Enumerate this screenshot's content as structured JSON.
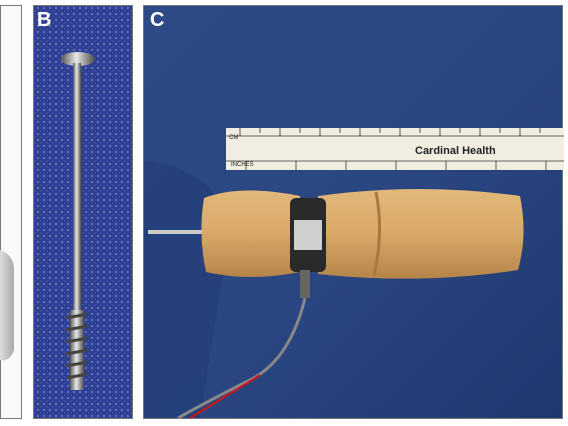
{
  "panels": [
    {
      "label": "B"
    },
    {
      "label": "C",
      "ruler": {
        "brand": "Cardinal Health",
        "top_unit": "CM",
        "bottom_unit": "INCHES"
      }
    }
  ]
}
